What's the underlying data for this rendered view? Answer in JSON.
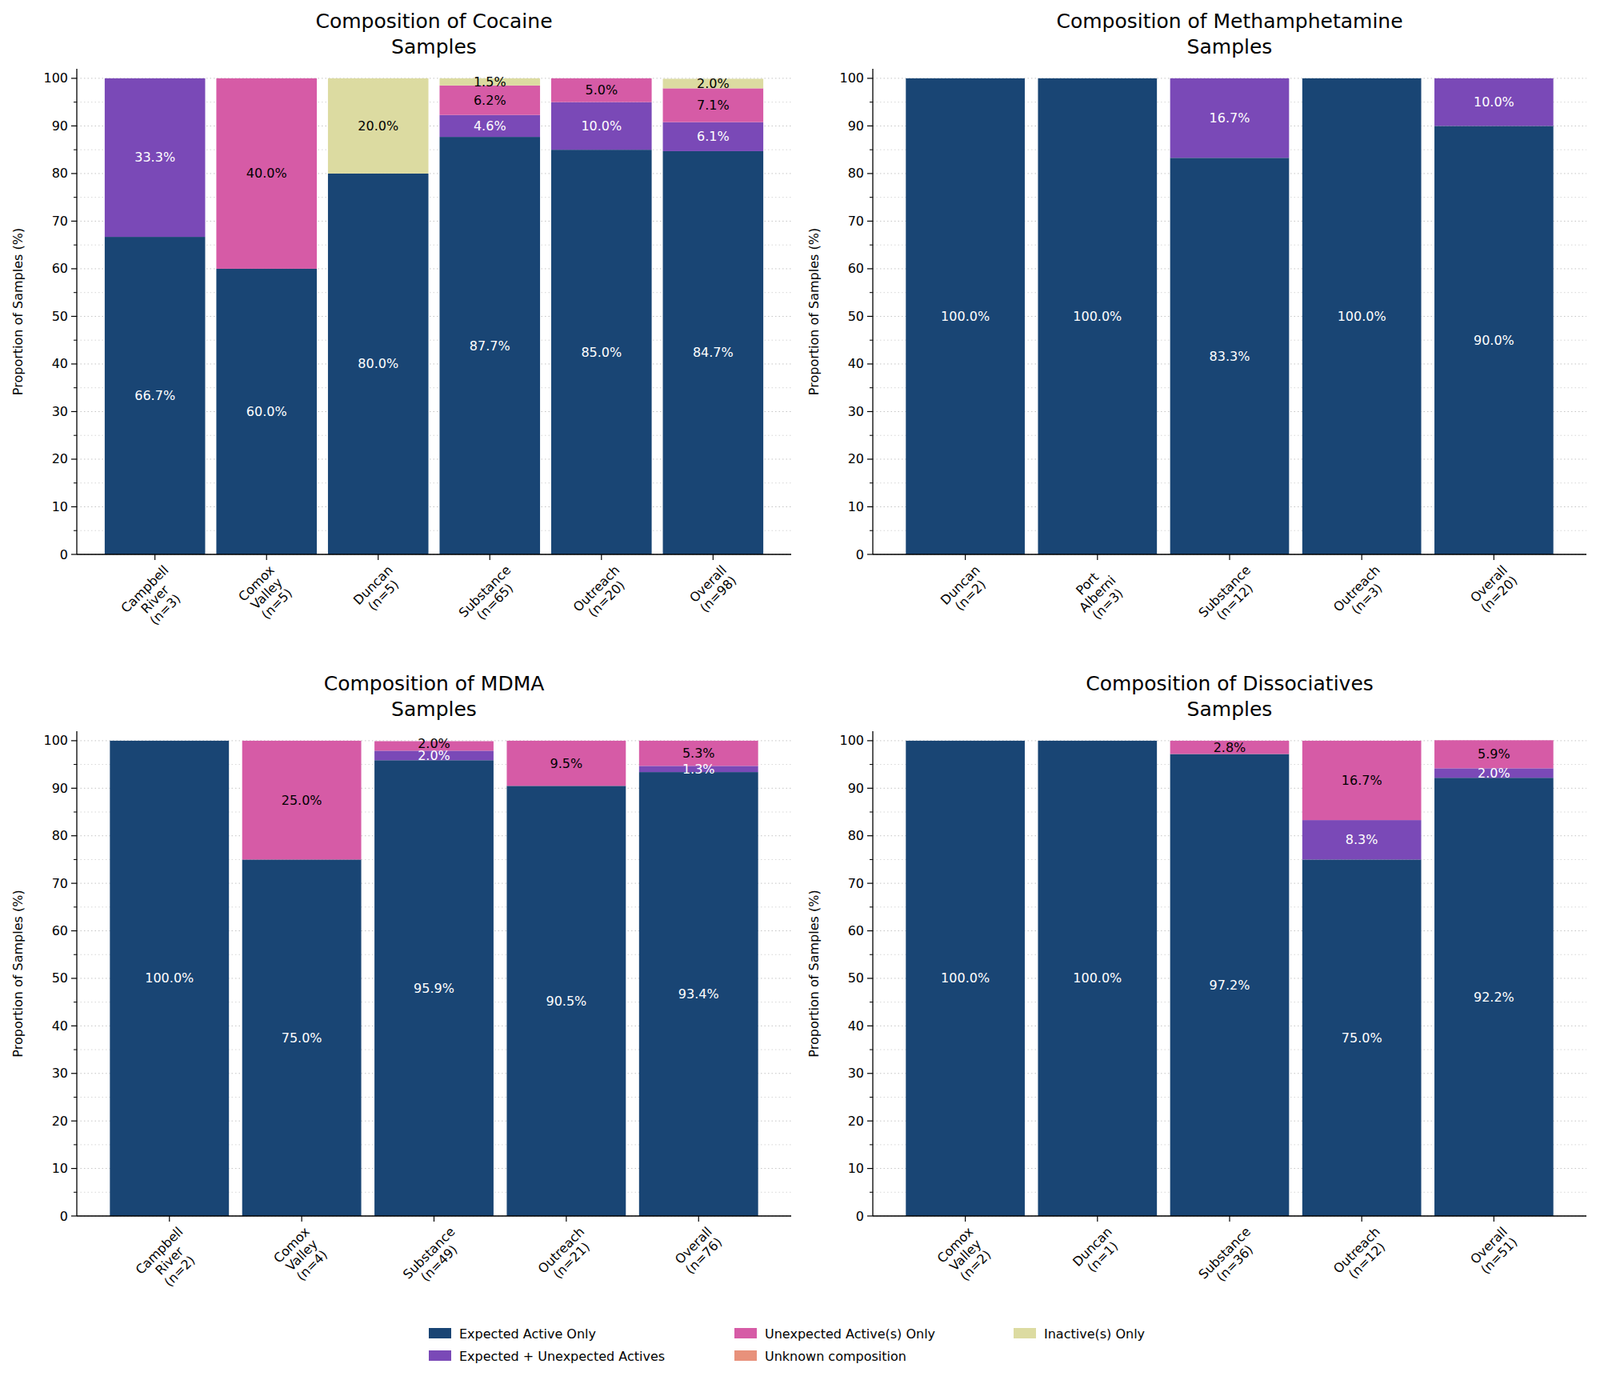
{
  "chart_data": [
    {
      "type": "bar",
      "title": "Composition of Cocaine\nSamples",
      "y_label": "Proportion of Samples (%)",
      "categories": [
        "Campbell\nRiver\n(n=3)",
        "Comox\nValley\n(n=5)",
        "Duncan\n(n=5)",
        "Substance\n(n=65)",
        "Outreach\n(n=20)",
        "Overall\n(n=98)"
      ],
      "series": [
        {
          "name": "Expected Active Only",
          "color": "#194574",
          "values": [
            66.7,
            60.0,
            80.0,
            87.7,
            85.0,
            84.7
          ],
          "value_labels": [
            "66.7%",
            "60.0%",
            "80.0%",
            "87.7%",
            "85.0%",
            "84.7%"
          ]
        },
        {
          "name": "Expected + Unexpected Actives",
          "color": "#7a49b7",
          "values": [
            33.3,
            0,
            0,
            4.6,
            10.0,
            6.1
          ],
          "value_labels": [
            "33.3%",
            null,
            null,
            "4.6%",
            "10.0%",
            "6.1%"
          ]
        },
        {
          "name": "Unexpected Active(s) Only",
          "color": "#d65ba6",
          "values": [
            0,
            40.0,
            0,
            6.2,
            5.0,
            7.1
          ],
          "value_labels": [
            null,
            "40.0%",
            null,
            "6.2%",
            "5.0%",
            "7.1%"
          ]
        },
        {
          "name": "Unknown composition",
          "color": "#e8917b",
          "values": [
            0,
            0,
            0,
            0,
            0,
            0
          ],
          "value_labels": [
            null,
            null,
            null,
            null,
            null,
            null
          ]
        },
        {
          "name": "Inactive(s) Only",
          "color": "#dcdba1",
          "values": [
            0,
            0,
            20.0,
            1.5,
            0,
            2.0
          ],
          "value_labels": [
            null,
            null,
            "20.0%",
            "1.5%",
            null,
            "2.0%"
          ]
        }
      ],
      "ylim": [
        0,
        102
      ],
      "yticks": [
        0,
        10,
        20,
        30,
        40,
        50,
        60,
        70,
        80,
        90,
        100
      ],
      "grid": true,
      "stacked": true,
      "data_labels": true,
      "legend": "bottom"
    },
    {
      "type": "bar",
      "title": "Composition of Methamphetamine\nSamples",
      "y_label": "Proportion of Samples (%)",
      "categories": [
        "Duncan\n(n=2)",
        "Port\nAlberni\n(n=3)",
        "Substance\n(n=12)",
        "Outreach\n(n=3)",
        "Overall\n(n=20)"
      ],
      "series": [
        {
          "name": "Expected Active Only",
          "color": "#194574",
          "values": [
            100.0,
            100.0,
            83.3,
            100.0,
            90.0
          ],
          "value_labels": [
            "100.0%",
            "100.0%",
            "83.3%",
            "100.0%",
            "90.0%"
          ]
        },
        {
          "name": "Expected + Unexpected Actives",
          "color": "#7a49b7",
          "values": [
            0,
            0,
            16.7,
            0,
            10.0
          ],
          "value_labels": [
            null,
            null,
            "16.7%",
            null,
            "10.0%"
          ]
        },
        {
          "name": "Unexpected Active(s) Only",
          "color": "#d65ba6",
          "values": [
            0,
            0,
            0,
            0,
            0
          ],
          "value_labels": [
            null,
            null,
            null,
            null,
            null
          ]
        },
        {
          "name": "Unknown composition",
          "color": "#e8917b",
          "values": [
            0,
            0,
            0,
            0,
            0
          ],
          "value_labels": [
            null,
            null,
            null,
            null,
            null
          ]
        },
        {
          "name": "Inactive(s) Only",
          "color": "#dcdba1",
          "values": [
            0,
            0,
            0,
            0,
            0
          ],
          "value_labels": [
            null,
            null,
            null,
            null,
            null
          ]
        }
      ],
      "ylim": [
        0,
        102
      ],
      "yticks": [
        0,
        10,
        20,
        30,
        40,
        50,
        60,
        70,
        80,
        90,
        100
      ],
      "grid": true,
      "stacked": true,
      "data_labels": true
    },
    {
      "type": "bar",
      "title": "Composition of MDMA\nSamples",
      "y_label": "Proportion of Samples (%)",
      "categories": [
        "Campbell\nRiver\n(n=2)",
        "Comox\nValley\n(n=4)",
        "Substance\n(n=49)",
        "Outreach\n(n=21)",
        "Overall\n(n=76)"
      ],
      "series": [
        {
          "name": "Expected Active Only",
          "color": "#194574",
          "values": [
            100.0,
            75.0,
            95.9,
            90.5,
            93.4
          ],
          "value_labels": [
            "100.0%",
            "75.0%",
            "95.9%",
            "90.5%",
            "93.4%"
          ]
        },
        {
          "name": "Expected + Unexpected Actives",
          "color": "#7a49b7",
          "values": [
            0,
            0,
            2.0,
            0,
            1.3
          ],
          "value_labels": [
            null,
            null,
            "2.0%",
            null,
            "1.3%"
          ]
        },
        {
          "name": "Unexpected Active(s) Only",
          "color": "#d65ba6",
          "values": [
            0,
            25.0,
            2.0,
            9.5,
            5.3
          ],
          "value_labels": [
            null,
            "25.0%",
            "2.0%",
            "9.5%",
            "5.3%"
          ]
        },
        {
          "name": "Unknown composition",
          "color": "#e8917b",
          "values": [
            0,
            0,
            0,
            0,
            0
          ],
          "value_labels": [
            null,
            null,
            null,
            null,
            null
          ]
        },
        {
          "name": "Inactive(s) Only",
          "color": "#dcdba1",
          "values": [
            0,
            0,
            0,
            0,
            0
          ],
          "value_labels": [
            null,
            null,
            null,
            null,
            null
          ]
        }
      ],
      "ylim": [
        0,
        102
      ],
      "yticks": [
        0,
        10,
        20,
        30,
        40,
        50,
        60,
        70,
        80,
        90,
        100
      ],
      "grid": true,
      "stacked": true,
      "data_labels": true
    },
    {
      "type": "bar",
      "title": "Composition of Dissociatives\nSamples",
      "y_label": "Proportion of Samples (%)",
      "categories": [
        "Comox\nValley\n(n=2)",
        "Duncan\n(n=1)",
        "Substance\n(n=36)",
        "Outreach\n(n=12)",
        "Overall\n(n=51)"
      ],
      "series": [
        {
          "name": "Expected Active Only",
          "color": "#194574",
          "values": [
            100.0,
            100.0,
            97.2,
            75.0,
            92.2
          ],
          "value_labels": [
            "100.0%",
            "100.0%",
            "97.2%",
            "75.0%",
            "92.2%"
          ]
        },
        {
          "name": "Expected + Unexpected Actives",
          "color": "#7a49b7",
          "values": [
            0,
            0,
            0,
            8.3,
            2.0
          ],
          "value_labels": [
            null,
            null,
            null,
            "8.3%",
            "2.0%"
          ]
        },
        {
          "name": "Unexpected Active(s) Only",
          "color": "#d65ba6",
          "values": [
            0,
            0,
            2.8,
            16.7,
            5.9
          ],
          "value_labels": [
            null,
            null,
            "2.8%",
            "16.7%",
            "5.9%"
          ]
        },
        {
          "name": "Unknown composition",
          "color": "#e8917b",
          "values": [
            0,
            0,
            0,
            0,
            0
          ],
          "value_labels": [
            null,
            null,
            null,
            null,
            null
          ]
        },
        {
          "name": "Inactive(s) Only",
          "color": "#dcdba1",
          "values": [
            0,
            0,
            0,
            0,
            0
          ],
          "value_labels": [
            null,
            null,
            null,
            null,
            null
          ]
        }
      ],
      "ylim": [
        0,
        102
      ],
      "yticks": [
        0,
        10,
        20,
        30,
        40,
        50,
        60,
        70,
        80,
        90,
        100
      ],
      "grid": true,
      "stacked": true,
      "data_labels": true
    }
  ]
}
